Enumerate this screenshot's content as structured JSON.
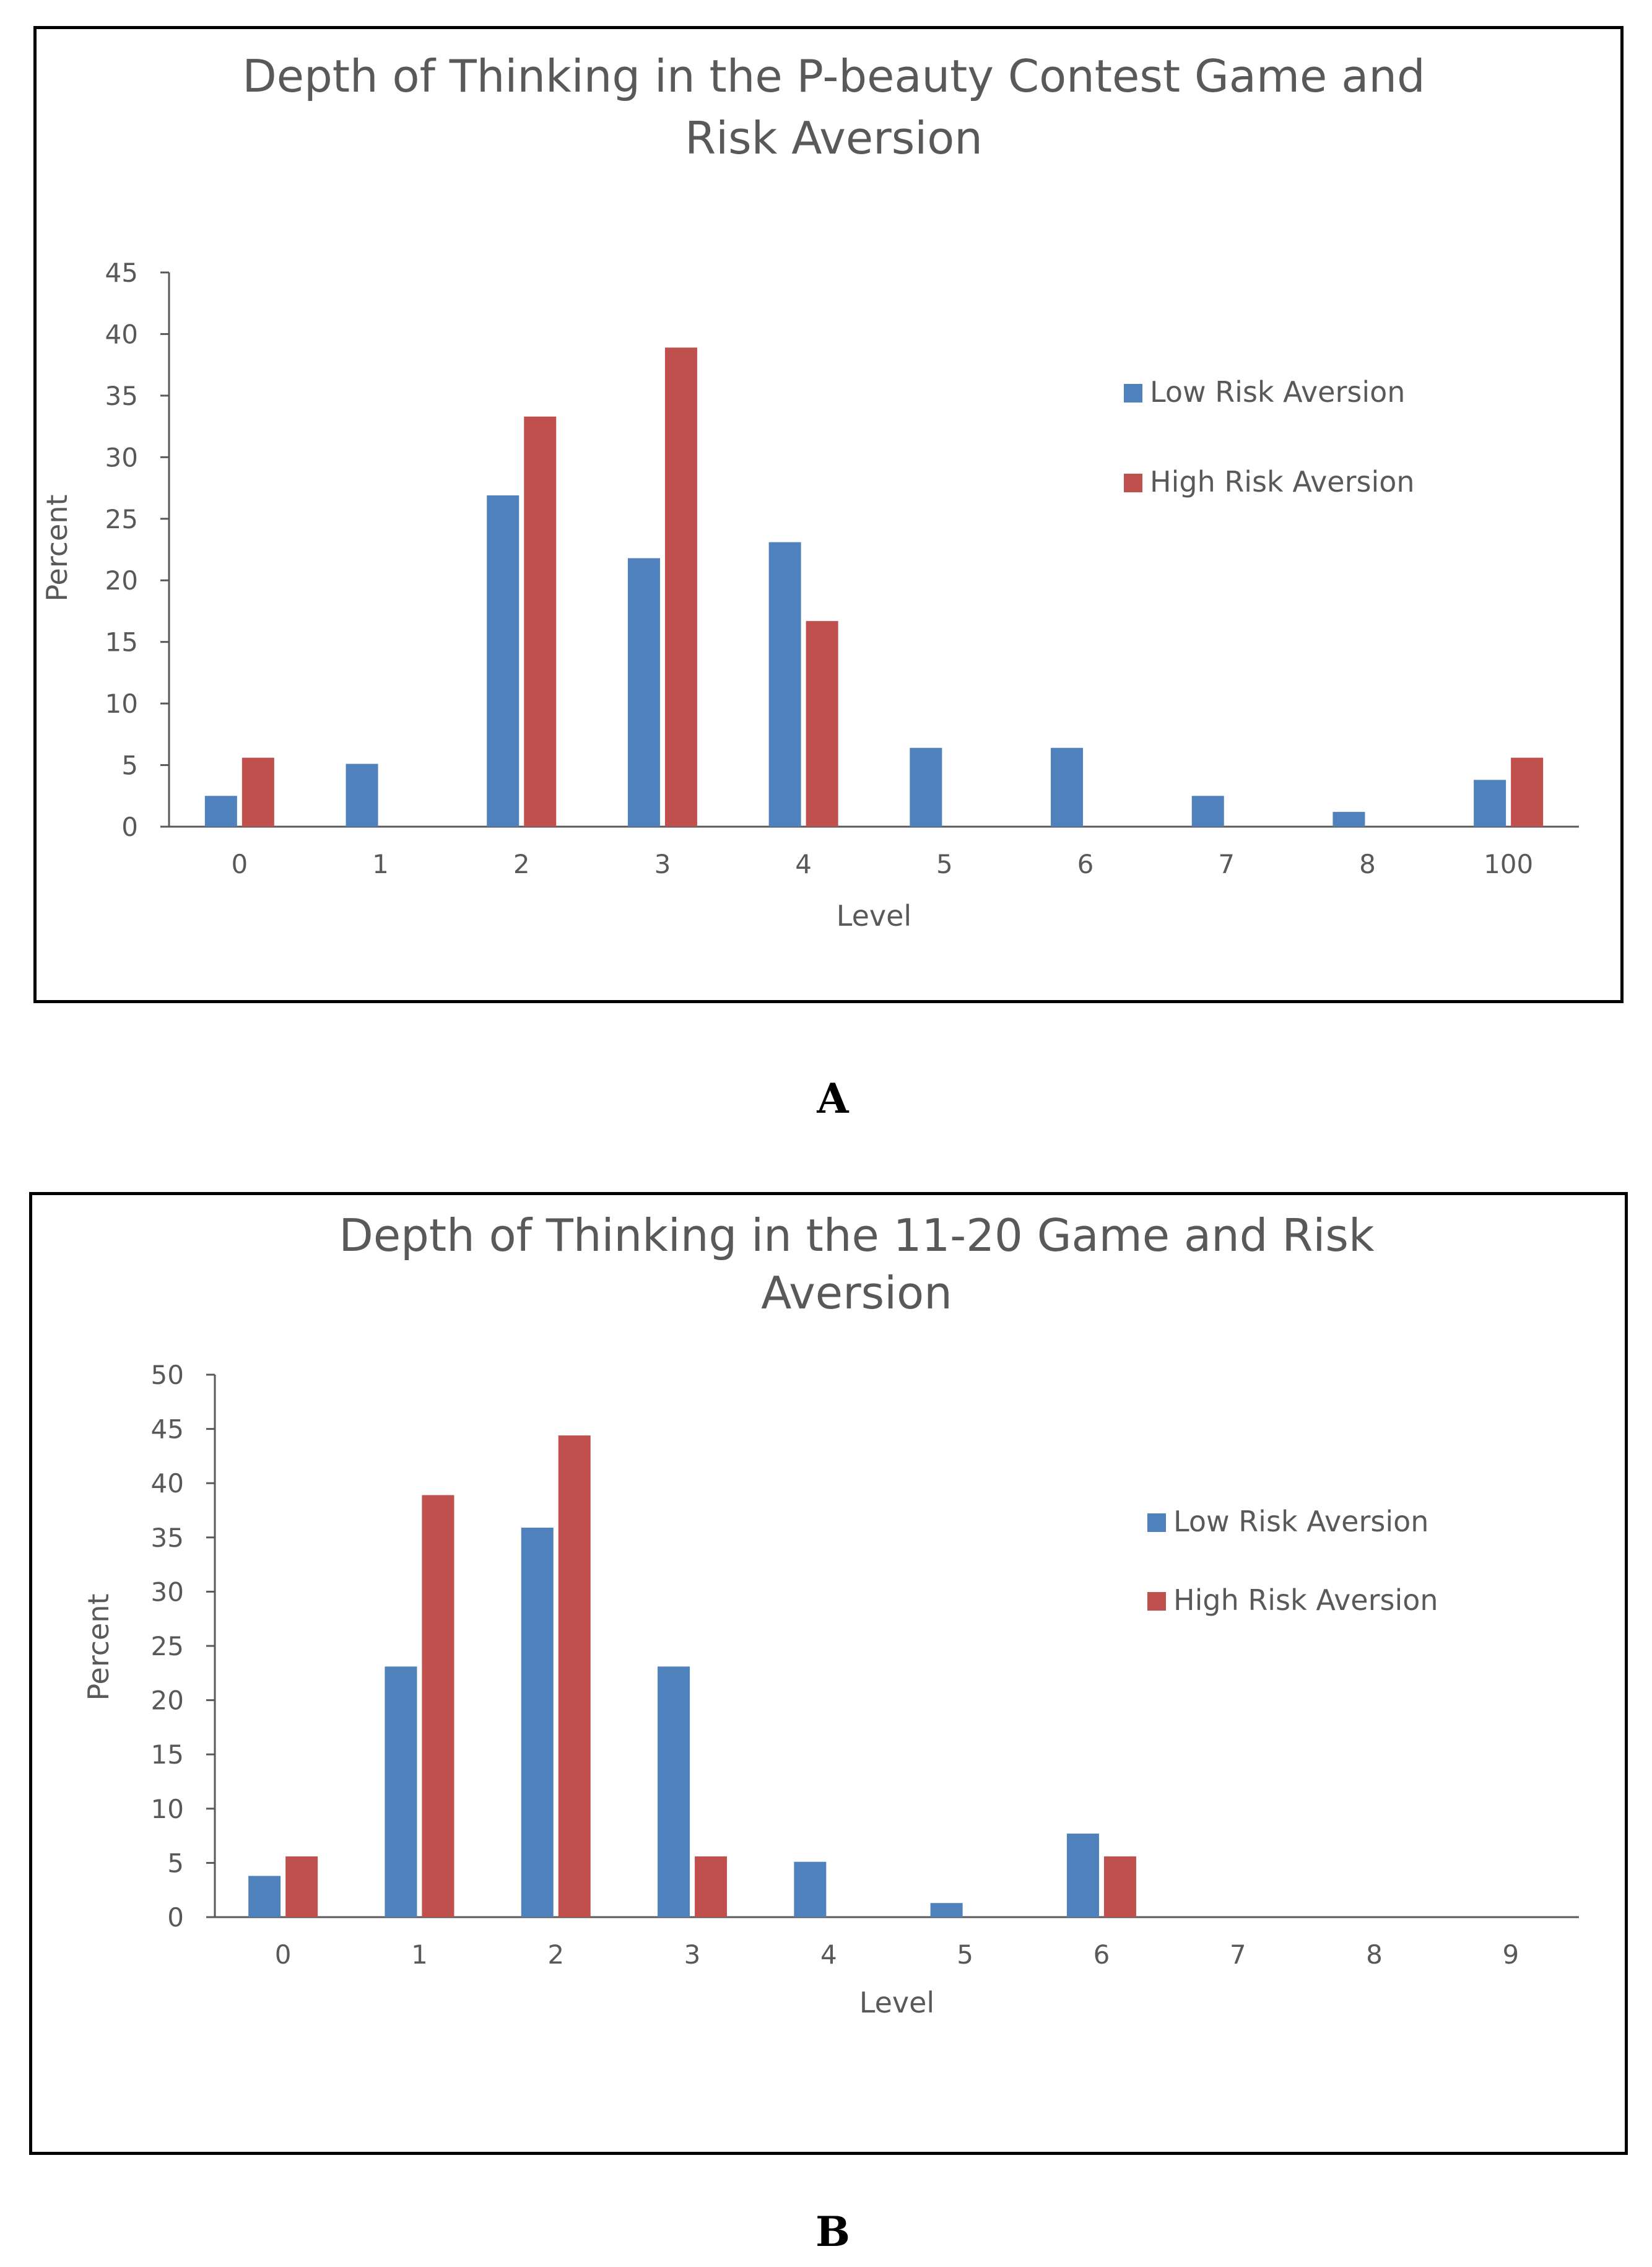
{
  "panel_labels": [
    "A",
    "B"
  ],
  "colors": {
    "low": "#4F81BD",
    "high": "#C0504D",
    "text": "#595959",
    "axis": "#595959"
  },
  "chart_data": [
    {
      "type": "bar",
      "title_lines": [
        "Depth of Thinking in the P-beauty Contest Game and",
        "Risk Aversion"
      ],
      "xlabel": "Level",
      "ylabel": "Percent",
      "categories": [
        "0",
        "1",
        "2",
        "3",
        "4",
        "5",
        "6",
        "7",
        "8",
        "100"
      ],
      "ylim": [
        0,
        45
      ],
      "ytick_step": 5,
      "legend_position": "right",
      "series": [
        {
          "name": "Low Risk Aversion",
          "values": [
            2.5,
            5.1,
            26.9,
            21.8,
            23.1,
            6.4,
            6.4,
            2.5,
            1.2,
            3.8
          ]
        },
        {
          "name": "High Risk Aversion",
          "values": [
            5.6,
            0,
            33.3,
            38.9,
            16.7,
            0,
            0,
            0,
            0,
            5.6
          ]
        }
      ]
    },
    {
      "type": "bar",
      "title_lines": [
        "Depth of Thinking in the 11-20 Game and Risk",
        "Aversion"
      ],
      "xlabel": "Level",
      "ylabel": "Percent",
      "categories": [
        "0",
        "1",
        "2",
        "3",
        "4",
        "5",
        "6",
        "7",
        "8",
        "9"
      ],
      "ylim": [
        0,
        50
      ],
      "ytick_step": 5,
      "legend_position": "right",
      "series": [
        {
          "name": "Low Risk Aversion",
          "values": [
            3.8,
            23.1,
            35.9,
            23.1,
            5.1,
            1.3,
            7.7,
            0,
            0,
            0
          ]
        },
        {
          "name": "High Risk Aversion",
          "values": [
            5.6,
            38.9,
            44.4,
            5.6,
            0,
            0,
            5.6,
            0,
            0,
            0
          ]
        }
      ]
    }
  ]
}
